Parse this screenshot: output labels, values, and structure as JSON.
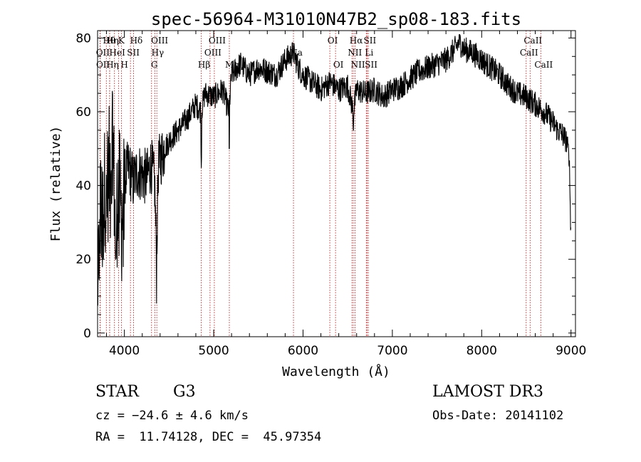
{
  "chart_data": {
    "type": "line",
    "title": "spec-56964-M31010N47B2_sp08-183.fits",
    "xlabel": "Wavelength (Å)",
    "ylabel": "Flux (relative)",
    "xlim": [
      3700,
      9050
    ],
    "ylim": [
      -1,
      82
    ],
    "xticks": [
      4000,
      5000,
      6000,
      7000,
      8000,
      9000
    ],
    "yticks": [
      0,
      20,
      40,
      60,
      80
    ],
    "grid": false,
    "series": [
      {
        "name": "flux",
        "anchors_x": [
          3700,
          3730,
          3750,
          3780,
          3800,
          3830,
          3850,
          3870,
          3900,
          3930,
          3950,
          3970,
          4000,
          4050,
          4100,
          4150,
          4200,
          4250,
          4300,
          4340,
          4360,
          4380,
          4400,
          4450,
          4500,
          4600,
          4700,
          4800,
          4860,
          4900,
          5000,
          5100,
          5170,
          5200,
          5300,
          5400,
          5500,
          5600,
          5700,
          5800,
          5890,
          5950,
          6000,
          6100,
          6200,
          6300,
          6400,
          6500,
          6563,
          6600,
          6700,
          6800,
          6900,
          7000,
          7100,
          7200,
          7300,
          7400,
          7500,
          7600,
          7700,
          7750,
          7800,
          7900,
          8000,
          8100,
          8200,
          8300,
          8400,
          8500,
          8600,
          8700,
          8800,
          8850,
          8900,
          8950,
          8980,
          9000
        ],
        "anchors_y": [
          5,
          38,
          28,
          40,
          36,
          45,
          30,
          55,
          25,
          40,
          38,
          30,
          42,
          45,
          41,
          44,
          43,
          42,
          46,
          40,
          20,
          45,
          47,
          50,
          52,
          55,
          58,
          62,
          60,
          65,
          64,
          66,
          60,
          70,
          73,
          70,
          72,
          71,
          70,
          74,
          76,
          72,
          70,
          68,
          66,
          68,
          66,
          67,
          60,
          66,
          65,
          66,
          64,
          66,
          67,
          69,
          71,
          72,
          73,
          74,
          77,
          79,
          77,
          76,
          74,
          72,
          70,
          67,
          65,
          64,
          62,
          60,
          57,
          55,
          54,
          52,
          48,
          25
        ],
        "noise": "high below 4400 A, moderate elsewhere"
      }
    ],
    "line_markers": [
      {
        "label": "Hθ",
        "x": 3798,
        "row": 1
      },
      {
        "label": "OII",
        "x": 3727,
        "row": 2
      },
      {
        "label": "OII",
        "x": 3729,
        "row": 3
      },
      {
        "label": "Hη",
        "x": 3835,
        "row": 1
      },
      {
        "label": "HeI",
        "x": 3889,
        "row": 2
      },
      {
        "label": "Hη",
        "x": 3835,
        "row": 3
      },
      {
        "label": "K",
        "x": 3934,
        "row": 1
      },
      {
        "label": "H",
        "x": 3968,
        "row": 3
      },
      {
        "label": "SII",
        "x": 4068,
        "row": 2
      },
      {
        "label": "Hδ",
        "x": 4102,
        "row": 1
      },
      {
        "label": "OIII",
        "x": 4363,
        "row": 1
      },
      {
        "label": "Hγ",
        "x": 4341,
        "row": 2
      },
      {
        "label": "G",
        "x": 4304,
        "row": 3
      },
      {
        "label": "Hβ",
        "x": 4861,
        "row": 3
      },
      {
        "label": "OIII",
        "x": 5007,
        "row": 1
      },
      {
        "label": "OIII",
        "x": 4959,
        "row": 2
      },
      {
        "label": "Mg",
        "x": 5175,
        "row": 3
      },
      {
        "label": "Na",
        "x": 5893,
        "row": 2
      },
      {
        "label": "OI",
        "x": 6300,
        "row": 1
      },
      {
        "label": "OI",
        "x": 6364,
        "row": 3
      },
      {
        "label": "Hα",
        "x": 6563,
        "row": 1
      },
      {
        "label": "NII",
        "x": 6548,
        "row": 2
      },
      {
        "label": "NII",
        "x": 6583,
        "row": 3
      },
      {
        "label": "SII",
        "x": 6717,
        "row": 1
      },
      {
        "label": "Li",
        "x": 6708,
        "row": 2
      },
      {
        "label": "SII",
        "x": 6731,
        "row": 3
      },
      {
        "label": "CaII",
        "x": 8542,
        "row": 1
      },
      {
        "label": "CaII",
        "x": 8498,
        "row": 2
      },
      {
        "label": "CaII",
        "x": 8662,
        "row": 3
      }
    ],
    "marker_color": "#cc0000",
    "line_color": "#000000"
  },
  "info": {
    "class_label": "STAR",
    "subclass": "G3",
    "survey": "LAMOST DR3",
    "redshift": "cz = −24.6 ± 4.6 km/s",
    "obs_date": "Obs-Date: 20141102",
    "coords": "RA =  11.74128, DEC =  45.97354"
  }
}
